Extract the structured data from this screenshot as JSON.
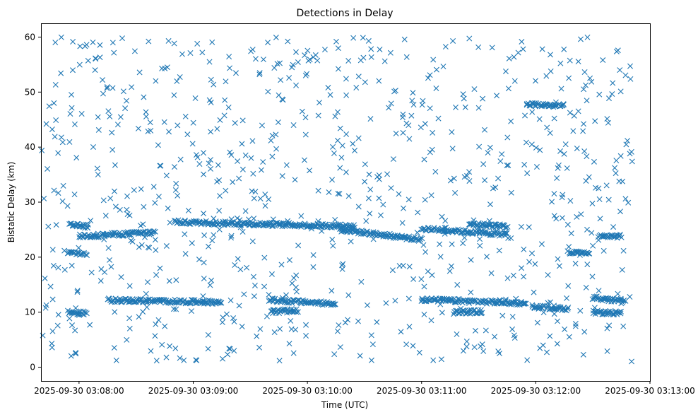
{
  "chart_data": {
    "type": "scatter",
    "title": "Detections in Delay",
    "xlabel": "Time (UTC)",
    "ylabel": "Bistatic Delay (km)",
    "marker": "x",
    "color": "#1f77b4",
    "x_unit": "seconds after 2025-09-30 03:07:40",
    "xlim": [
      0,
      320
    ],
    "ylim": [
      -2.5,
      62.5
    ],
    "x_ticks": [
      {
        "value": 20,
        "label": "2025-09-30 03:08:00"
      },
      {
        "value": 80,
        "label": "2025-09-30 03:09:00"
      },
      {
        "value": 140,
        "label": "2025-09-30 03:10:00"
      },
      {
        "value": 200,
        "label": "2025-09-30 03:11:00"
      },
      {
        "value": 260,
        "label": "2025-09-30 03:12:00"
      },
      {
        "value": 320,
        "label": "2025-09-30 03:13:00"
      }
    ],
    "y_ticks": [
      {
        "value": 0,
        "label": "0"
      },
      {
        "value": 10,
        "label": "10"
      },
      {
        "value": 20,
        "label": "20"
      },
      {
        "value": 30,
        "label": "30"
      },
      {
        "value": 40,
        "label": "40"
      },
      {
        "value": 50,
        "label": "50"
      },
      {
        "value": 60,
        "label": "60"
      }
    ],
    "track_segments": [
      {
        "name": "track-12km-early",
        "x_start": 35,
        "x_end": 95,
        "y_start": 12.2,
        "y_end": 11.8
      },
      {
        "name": "track-10km-a",
        "x_start": 14,
        "x_end": 24,
        "y_start": 10.0,
        "y_end": 9.8
      },
      {
        "name": "track-10km-b",
        "x_start": 121,
        "x_end": 135,
        "y_start": 10.1,
        "y_end": 10.3
      },
      {
        "name": "track-12km-mid",
        "x_start": 120,
        "x_end": 155,
        "y_start": 12.2,
        "y_end": 11.5
      },
      {
        "name": "track-12km-late",
        "x_start": 200,
        "x_end": 255,
        "y_start": 12.3,
        "y_end": 11.6
      },
      {
        "name": "track-10km-late",
        "x_start": 217,
        "x_end": 232,
        "y_start": 10.0,
        "y_end": 10.1
      },
      {
        "name": "track-11km-late",
        "x_start": 258,
        "x_end": 277,
        "y_start": 11.0,
        "y_end": 10.6
      },
      {
        "name": "track-12km-end",
        "x_start": 290,
        "x_end": 307,
        "y_start": 12.7,
        "y_end": 11.8
      },
      {
        "name": "track-10km-end",
        "x_start": 290,
        "x_end": 305,
        "y_start": 10.0,
        "y_end": 9.8
      },
      {
        "name": "track-26km-early",
        "x_start": 15,
        "x_end": 25,
        "y_start": 25.8,
        "y_end": 25.6
      },
      {
        "name": "track-24km-early",
        "x_start": 20,
        "x_end": 60,
        "y_start": 23.8,
        "y_end": 24.5
      },
      {
        "name": "track-21km-early",
        "x_start": 14,
        "x_end": 24,
        "y_start": 20.8,
        "y_end": 20.6
      },
      {
        "name": "track-26km-main",
        "x_start": 70,
        "x_end": 165,
        "y_start": 26.4,
        "y_end": 25.6
      },
      {
        "name": "track-25km-mid",
        "x_start": 157,
        "x_end": 200,
        "y_start": 25.0,
        "y_end": 23.2
      },
      {
        "name": "track-25km-late",
        "x_start": 200,
        "x_end": 245,
        "y_start": 25.2,
        "y_end": 24.1
      },
      {
        "name": "track-26km-late",
        "x_start": 225,
        "x_end": 245,
        "y_start": 26.0,
        "y_end": 25.6
      },
      {
        "name": "track-24km-end",
        "x_start": 293,
        "x_end": 305,
        "y_start": 23.8,
        "y_end": 23.8
      },
      {
        "name": "track-21km-end",
        "x_start": 277,
        "x_end": 288,
        "y_start": 20.8,
        "y_end": 20.6
      },
      {
        "name": "track-48km-late",
        "x_start": 255,
        "x_end": 275,
        "y_start": 47.8,
        "y_end": 47.5
      }
    ],
    "scatter_points": {
      "count": 820,
      "x_range": [
        0,
        311
      ],
      "y_range": [
        1,
        60
      ],
      "distribution": "uniform background clutter"
    }
  }
}
